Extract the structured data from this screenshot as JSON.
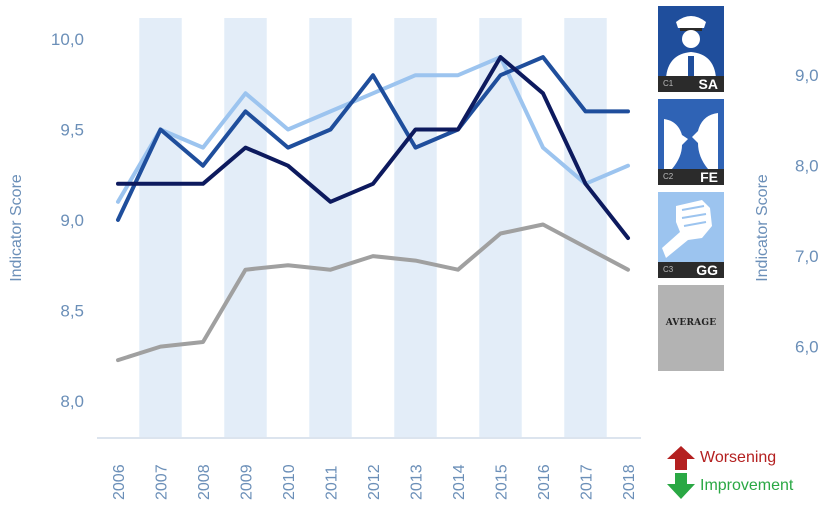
{
  "chart_data": {
    "type": "line",
    "x": [
      "2006",
      "2007",
      "2008",
      "2009",
      "2010",
      "2011",
      "2012",
      "2013",
      "2014",
      "2015",
      "2016",
      "2017",
      "2018"
    ],
    "series": [
      {
        "name": "SA",
        "color": "#1f4e9c",
        "values": [
          9.0,
          9.5,
          9.3,
          9.6,
          9.4,
          9.5,
          9.8,
          9.4,
          9.5,
          9.8,
          9.9,
          9.6,
          9.6
        ]
      },
      {
        "name": "FE",
        "color": "#9cc4ef",
        "values": [
          9.1,
          9.5,
          9.4,
          9.7,
          9.5,
          9.6,
          9.7,
          9.8,
          9.8,
          9.9,
          9.4,
          9.2,
          9.3
        ]
      },
      {
        "name": "GG",
        "color": "#0d1a5e",
        "values": [
          9.2,
          9.2,
          9.2,
          9.4,
          9.3,
          9.1,
          9.2,
          9.5,
          9.5,
          9.9,
          9.7,
          9.2,
          8.9
        ]
      },
      {
        "name": "AVERAGE",
        "color": "#a0a0a0",
        "axis": "right",
        "values": [
          5.85,
          6.0,
          6.05,
          6.85,
          6.9,
          6.85,
          7.0,
          6.95,
          6.85,
          7.25,
          7.35,
          7.1,
          6.85
        ]
      }
    ],
    "ylabel": "Indicator Score",
    "ylabel_right": "Indicator Score",
    "y_ticks": [
      "10,0",
      "9,5",
      "9,0",
      "8,5",
      "8,0"
    ],
    "y_tick_values": [
      10.0,
      9.5,
      9.0,
      8.5,
      8.0
    ],
    "ylim": [
      7.8,
      10.05
    ],
    "y_right_ticks": [
      "9,0",
      "8,0",
      "7,0",
      "6,0"
    ],
    "y_right_tick_values": [
      9.0,
      8.0,
      7.0,
      6.0
    ],
    "ylim_right": [
      5.0,
      9.5
    ],
    "legend": [
      {
        "code_small": "C1",
        "code_big": "SA",
        "color": "#1f4e9c",
        "icon": "police-officer-icon"
      },
      {
        "code_small": "C2",
        "code_big": "FE",
        "color": "#2f63b5",
        "icon": "faces-confrontation-icon"
      },
      {
        "code_small": "C3",
        "code_big": "GG",
        "color": "#9cc4ef",
        "icon": "raised-fist-icon"
      },
      {
        "code_small": "",
        "code_big": "",
        "label": "AVERAGE",
        "color": "#b3b3b3",
        "icon": ""
      }
    ],
    "status": [
      {
        "label": "Worsening",
        "color": "#b42020",
        "icon": "arrow-up-icon"
      },
      {
        "label": "Improvement",
        "color": "#2aa844",
        "icon": "arrow-down-icon"
      }
    ],
    "grid": false,
    "band_color": "#e3edf8"
  }
}
